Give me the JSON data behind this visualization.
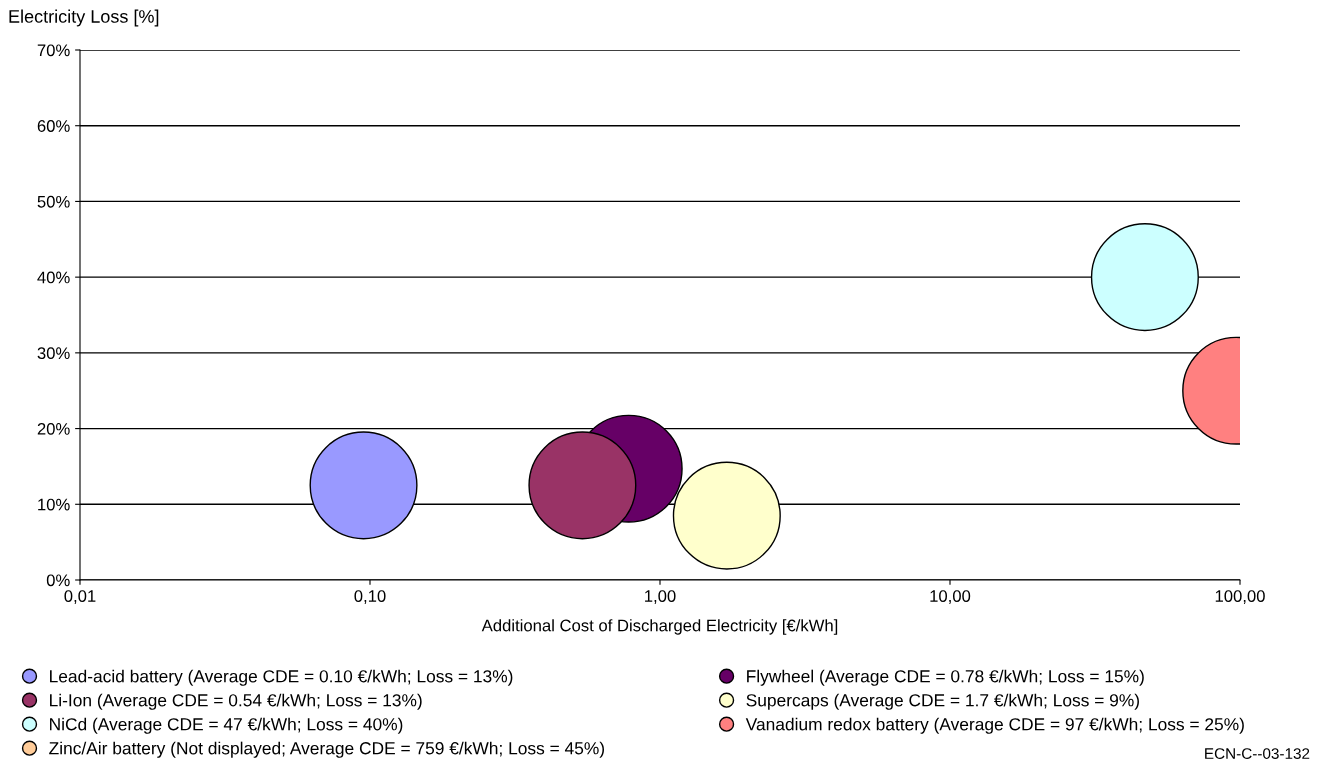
{
  "chart_data": {
    "type": "bubble",
    "ylabel": "Electricity Loss [%]",
    "xlabel": "Additional Cost of Discharged Electricity [€/kWh]",
    "log": "x",
    "xlim": [
      0.01,
      100
    ],
    "xticks": [
      {
        "value": 0.01,
        "label": "0,01"
      },
      {
        "value": 0.1,
        "label": "0,10"
      },
      {
        "value": 1,
        "label": "1,00"
      },
      {
        "value": 10,
        "label": "10,00"
      },
      {
        "value": 100,
        "label": "100,00"
      }
    ],
    "ylim": [
      0,
      70
    ],
    "yticks": [
      {
        "value": 0,
        "label": "0%"
      },
      {
        "value": 10,
        "label": "10%"
      },
      {
        "value": 20,
        "label": "20%"
      },
      {
        "value": 30,
        "label": "30%"
      },
      {
        "value": 40,
        "label": "40%"
      },
      {
        "value": 50,
        "label": "50%"
      },
      {
        "value": 60,
        "label": "60%"
      },
      {
        "value": 70,
        "label": "70%"
      }
    ],
    "grid": "y",
    "legend": "bottom",
    "marker": "circle",
    "series": [
      {
        "name": "Lead-acid battery (Average CDE = 0.10 €/kWh; Loss = 13%)",
        "color": "#9999ff",
        "x": [
          0.095
        ],
        "values": [
          12.5
        ],
        "sizes": [
          1
        ]
      },
      {
        "name": "Flywheel (Average CDE = 0.78 €/kWh; Loss = 15%)",
        "color": "#660066",
        "x": [
          0.78
        ],
        "values": [
          14.7
        ],
        "sizes": [
          1
        ]
      },
      {
        "name": "Li-Ion (Average CDE = 0.54 €/kWh; Loss = 13%)",
        "color": "#993366",
        "x": [
          0.54
        ],
        "values": [
          12.5
        ],
        "sizes": [
          1
        ]
      },
      {
        "name": "Supercaps (Average CDE = 1.7 €/kWh; Loss = 9%)",
        "color": "#ffffcc",
        "x": [
          1.7
        ],
        "values": [
          8.5
        ],
        "sizes": [
          1
        ]
      },
      {
        "name": "NiCd (Average CDE = 47 €/kWh; Loss = 40%)",
        "color": "#ccffff",
        "x": [
          47
        ],
        "values": [
          40
        ],
        "sizes": [
          1
        ]
      },
      {
        "name": "Vanadium redox battery (Average CDE = 97 €/kWh; Loss = 25%)",
        "color": "#ff8080",
        "x": [
          97
        ],
        "values": [
          25
        ],
        "sizes": [
          1
        ]
      },
      {
        "name": "Zinc/Air battery (Not displayed; Average CDE = 759 €/kWh; Loss = 45%)",
        "color": "#ffcc99",
        "x": [
          null
        ],
        "values": [
          null
        ],
        "sizes": [
          null
        ]
      }
    ],
    "annotations": [
      "ECN-C--03-132"
    ]
  }
}
